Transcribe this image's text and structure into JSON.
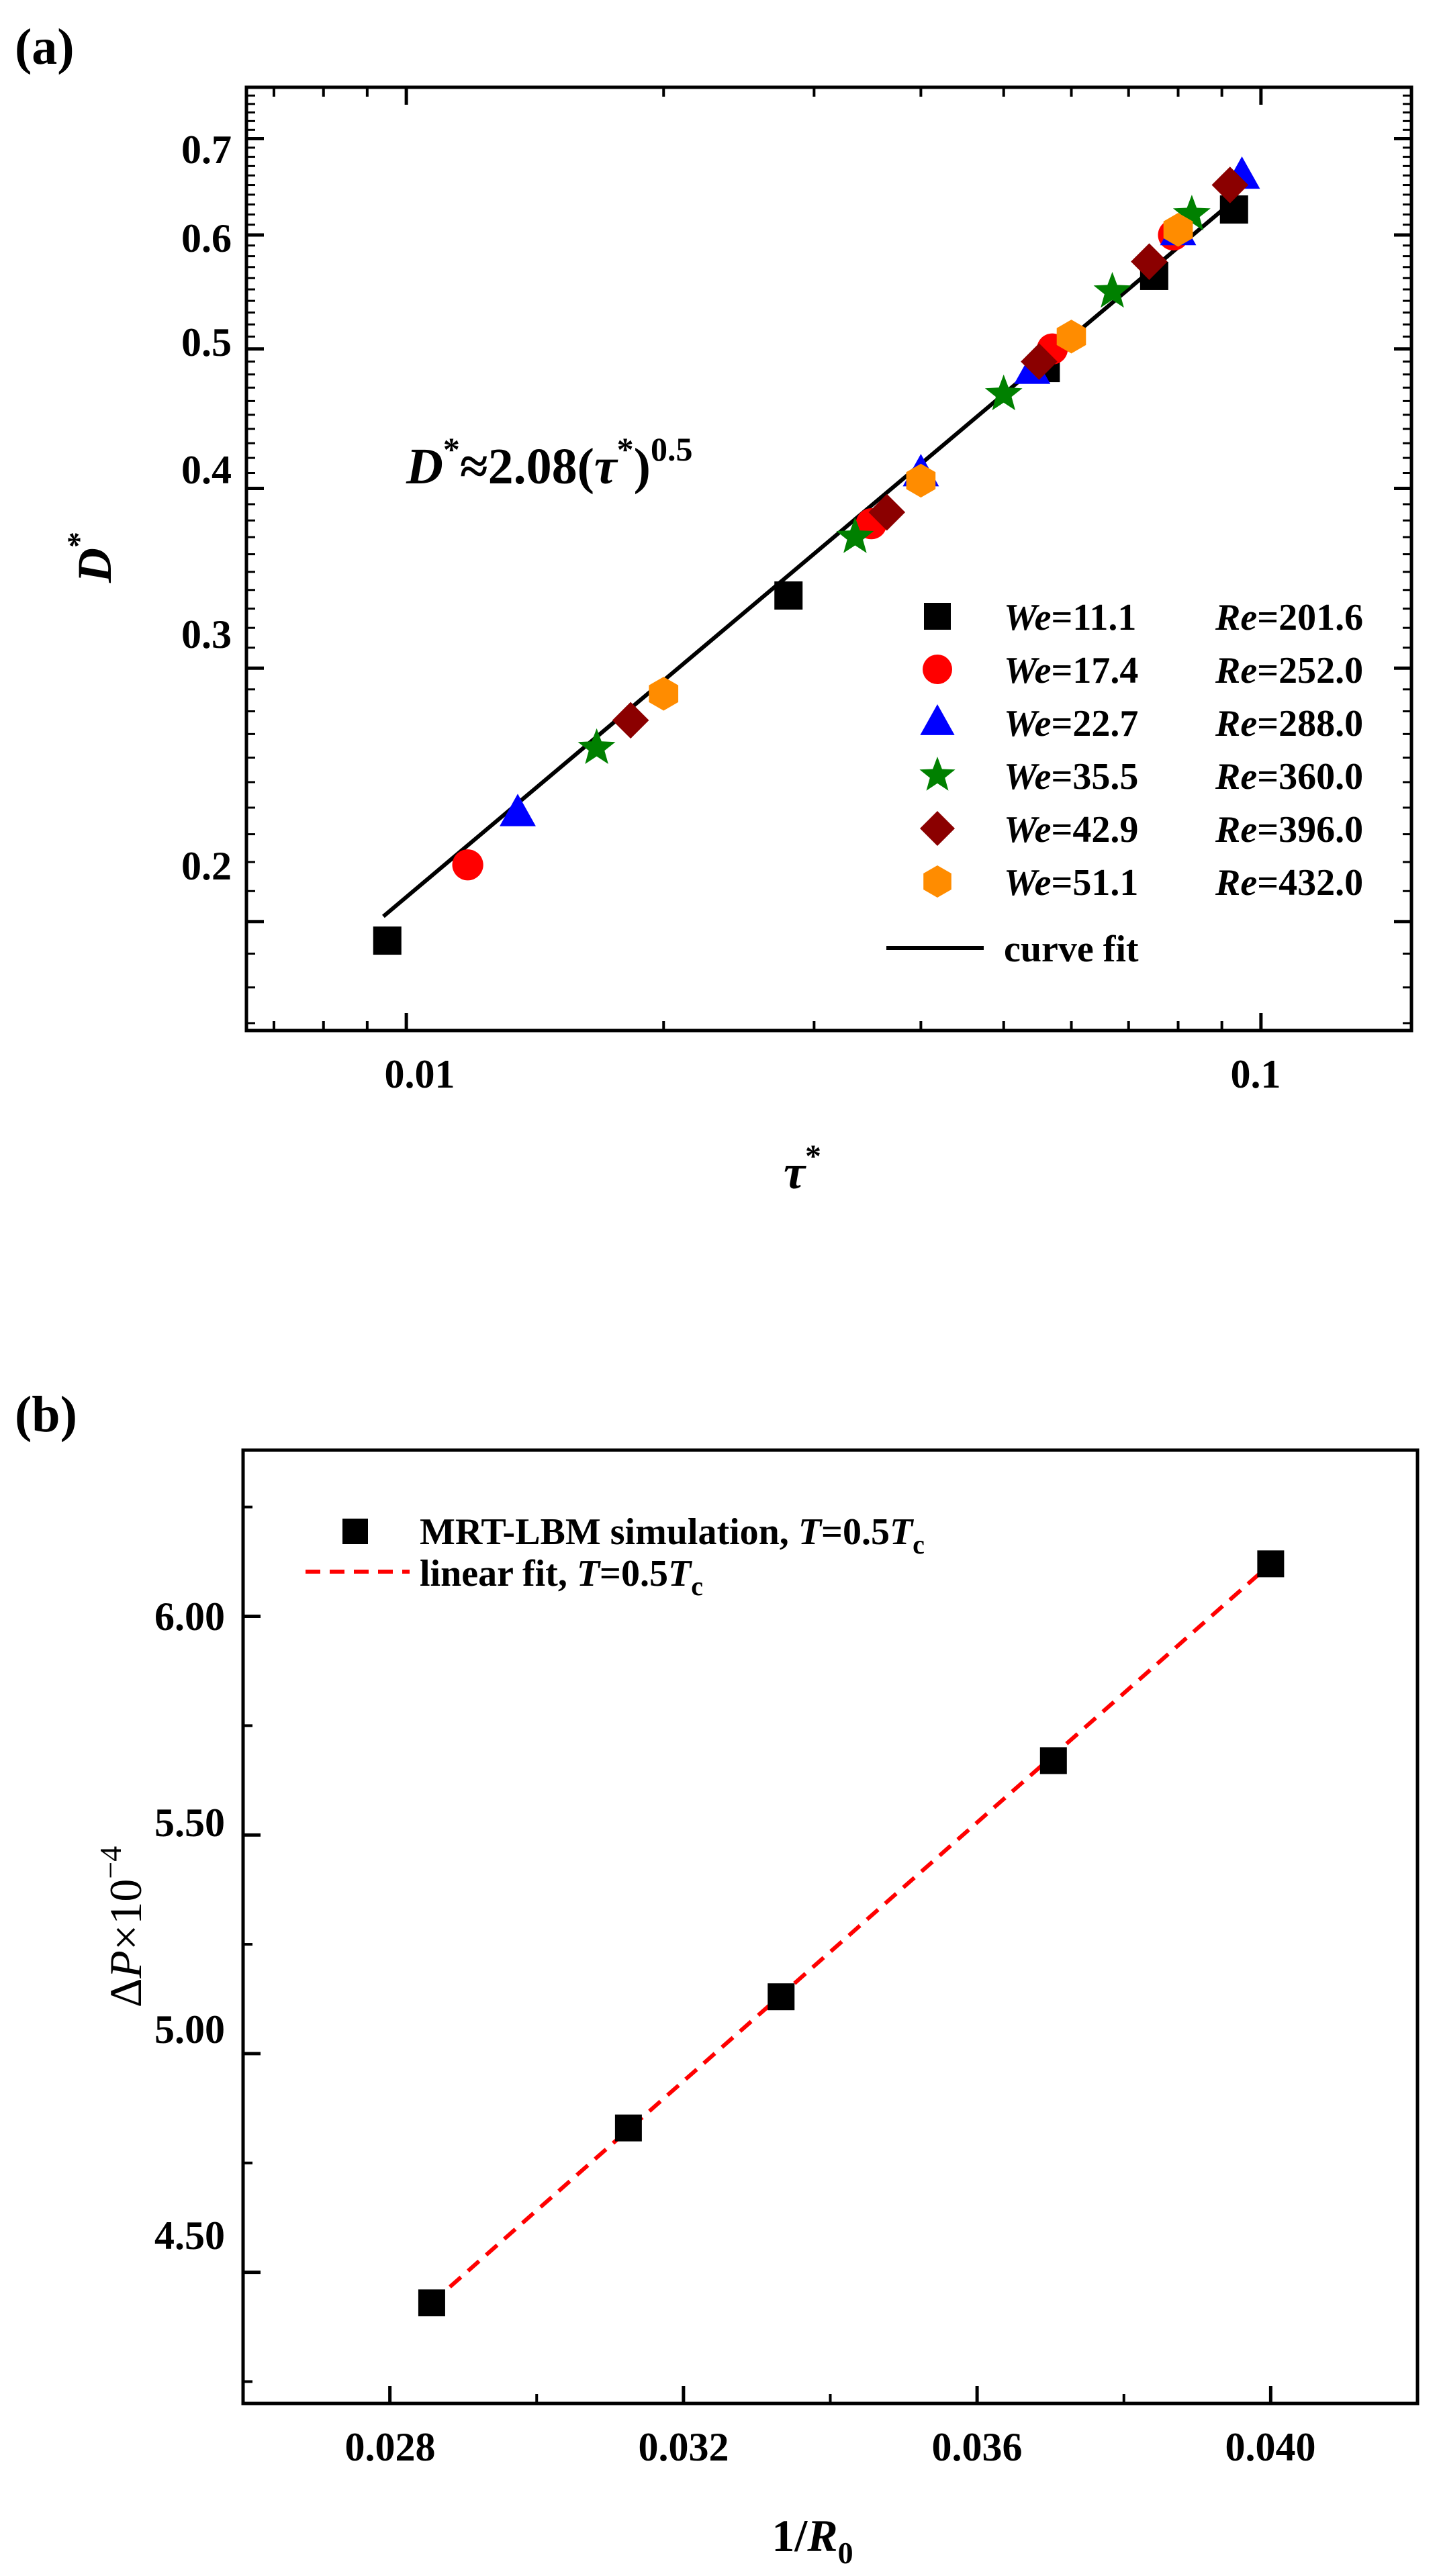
{
  "chart_data": [
    {
      "type": "scatter",
      "panel_label": "(a)",
      "xscale": "log",
      "yscale": "log",
      "xlim": [
        0.0065,
        0.15
      ],
      "ylim": [
        0.168,
        0.76
      ],
      "xlabel": "τ",
      "xlabel_sup": "*",
      "ylabel": "D",
      "ylabel_sup": "*",
      "xticks": [
        0.01,
        0.1
      ],
      "xtick_labels": [
        "0.01",
        "0.1"
      ],
      "yticks": [
        0.2,
        0.3,
        0.4,
        0.5,
        0.6,
        0.7
      ],
      "ytick_labels": [
        "0.2",
        "0.3",
        "0.4",
        "0.5",
        "0.6",
        "0.7"
      ],
      "annotation": {
        "parts": [
          "D",
          "*",
          "≈2.08(",
          "τ",
          "*",
          ")",
          "0.5"
        ]
      },
      "series": [
        {
          "we_prefix": "We",
          "we_value": "=11.1",
          "re_prefix": "Re",
          "re_value": "=201.6",
          "marker": "square",
          "color": "#000000",
          "points": [
            [
              0.0095,
              0.194
            ],
            [
              0.028,
              0.337
            ],
            [
              0.056,
              0.485
            ],
            [
              0.075,
              0.562
            ],
            [
              0.093,
              0.625
            ]
          ]
        },
        {
          "we_prefix": "We",
          "we_value": "=17.4",
          "re_prefix": "Re",
          "re_value": "=252.0",
          "marker": "circle",
          "color": "#ff0000",
          "points": [
            [
              0.0118,
              0.219
            ],
            [
              0.035,
              0.378
            ],
            [
              0.057,
              0.5
            ],
            [
              0.079,
              0.6
            ]
          ]
        },
        {
          "we_prefix": "We",
          "we_value": "=22.7",
          "re_prefix": "Re",
          "re_value": "=288.0",
          "marker": "triangle",
          "color": "#0000ff",
          "points": [
            [
              0.0135,
              0.238
            ],
            [
              0.04,
              0.41
            ],
            [
              0.054,
              0.483
            ],
            [
              0.08,
              0.603
            ],
            [
              0.095,
              0.66
            ]
          ]
        },
        {
          "we_prefix": "We",
          "we_value": "=35.5",
          "re_prefix": "Re",
          "re_value": "=360.0",
          "marker": "star",
          "color": "#008000",
          "points": [
            [
              0.0167,
              0.264
            ],
            [
              0.0335,
              0.37
            ],
            [
              0.05,
              0.465
            ],
            [
              0.067,
              0.548
            ],
            [
              0.083,
              0.62
            ]
          ]
        },
        {
          "we_prefix": "We",
          "we_value": "=42.9",
          "re_prefix": "Re",
          "re_value": "=396.0",
          "marker": "diamond",
          "color": "#8b0000",
          "points": [
            [
              0.0183,
              0.276
            ],
            [
              0.0365,
              0.385
            ],
            [
              0.055,
              0.49
            ],
            [
              0.074,
              0.575
            ],
            [
              0.092,
              0.65
            ]
          ]
        },
        {
          "we_prefix": "We",
          "we_value": "=51.1",
          "re_prefix": "Re",
          "re_value": "=432.0",
          "marker": "hexagon",
          "color": "#ff8c00",
          "points": [
            [
              0.02,
              0.288
            ],
            [
              0.04,
              0.405
            ],
            [
              0.06,
              0.51
            ],
            [
              0.08,
              0.605
            ]
          ]
        }
      ],
      "fit": {
        "label": "curve fit",
        "coefficient": 2.08,
        "exponent": 0.5,
        "x_range": [
          0.0094,
          0.094
        ],
        "color": "#000000"
      }
    },
    {
      "type": "scatter",
      "panel_label": "(b)",
      "xlim": [
        0.026,
        0.042
      ],
      "ylim": [
        4.2,
        6.38
      ],
      "xlabel_main": "1/",
      "xlabel_var": "R",
      "xlabel_sub": "0",
      "ylabel_main": "Δ",
      "ylabel_var": "P",
      "ylabel_rest": "×10",
      "ylabel_exp": "−4",
      "xticks": [
        0.028,
        0.032,
        0.036,
        0.04
      ],
      "xtick_labels": [
        "0.028",
        "0.032",
        "0.036",
        "0.040"
      ],
      "yticks": [
        4.5,
        5.0,
        5.5,
        6.0
      ],
      "ytick_labels": [
        "4.50",
        "5.00",
        "5.50",
        "6.00"
      ],
      "series": [
        {
          "label_main": "MRT-LBM simulation, ",
          "label_var": "T",
          "label_eq": "=0.5",
          "label_tc": "T",
          "label_tc_sub": "c",
          "marker": "square",
          "color": "#000000",
          "points": [
            [
              0.02857,
              4.43
            ],
            [
              0.03125,
              4.83
            ],
            [
              0.03333,
              5.13
            ],
            [
              0.03704,
              5.67
            ],
            [
              0.04,
              6.12
            ]
          ]
        }
      ],
      "fit": {
        "label_main": "linear fit, ",
        "label_var": "T",
        "label_eq": "=0.5",
        "label_tc": "T",
        "label_tc_sub": "c",
        "color": "#ff0000",
        "from": [
          0.02857,
          4.43
        ],
        "to": [
          0.04,
          6.12
        ]
      }
    }
  ]
}
